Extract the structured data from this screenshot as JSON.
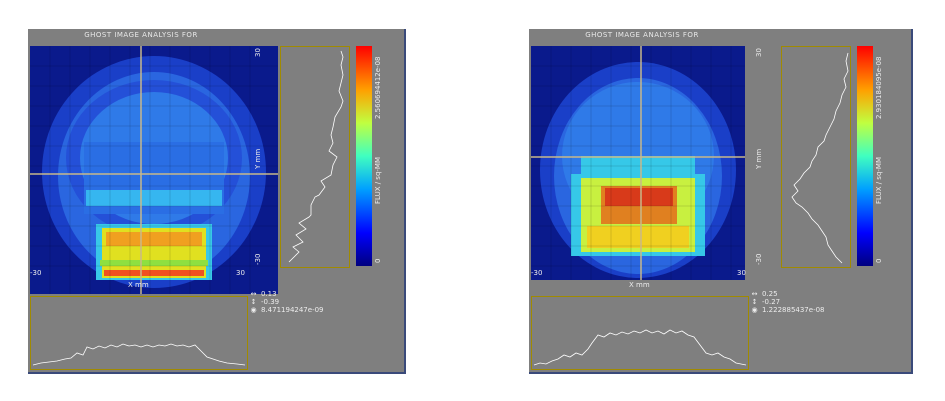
{
  "panels": [
    {
      "title": "GHOST IMAGE ANALYSIS FOR",
      "x_axis": {
        "label": "X mm",
        "min_label": "-30",
        "max_label": "30"
      },
      "y_axis": {
        "label": "Y mm",
        "max_label": "30",
        "min_label": "-30"
      },
      "colorbar": {
        "max_label": "2.560694412e-08",
        "min_label": "0",
        "unit_label": "FLUX / sq-MM"
      },
      "readout": {
        "x": "0.13",
        "y": "-0.39",
        "value": "8.471194247e-09"
      }
    },
    {
      "title": "GHOST IMAGE ANALYSIS FOR",
      "x_axis": {
        "label": "X mm",
        "min_label": "-30",
        "max_label": "30"
      },
      "y_axis": {
        "label": "Y mm",
        "max_label": "30",
        "min_label": "-30"
      },
      "colorbar": {
        "max_label": "2.930184095e-08",
        "min_label": "0",
        "unit_label": "FLUX / sq-MM"
      },
      "readout": {
        "x": "0.25",
        "y": "-0.27",
        "value": "1.222885437e-08"
      }
    }
  ],
  "colors": {
    "panel_bg": "#7f7f7f",
    "plot_bg": "#0a1a8c",
    "crosshair": "#c8b88a",
    "profile_border": "#a08a00"
  },
  "icons": {
    "x_readout": "horizontal-arrow-icon",
    "y_readout": "vertical-arrow-icon",
    "value_readout": "target-icon"
  }
}
